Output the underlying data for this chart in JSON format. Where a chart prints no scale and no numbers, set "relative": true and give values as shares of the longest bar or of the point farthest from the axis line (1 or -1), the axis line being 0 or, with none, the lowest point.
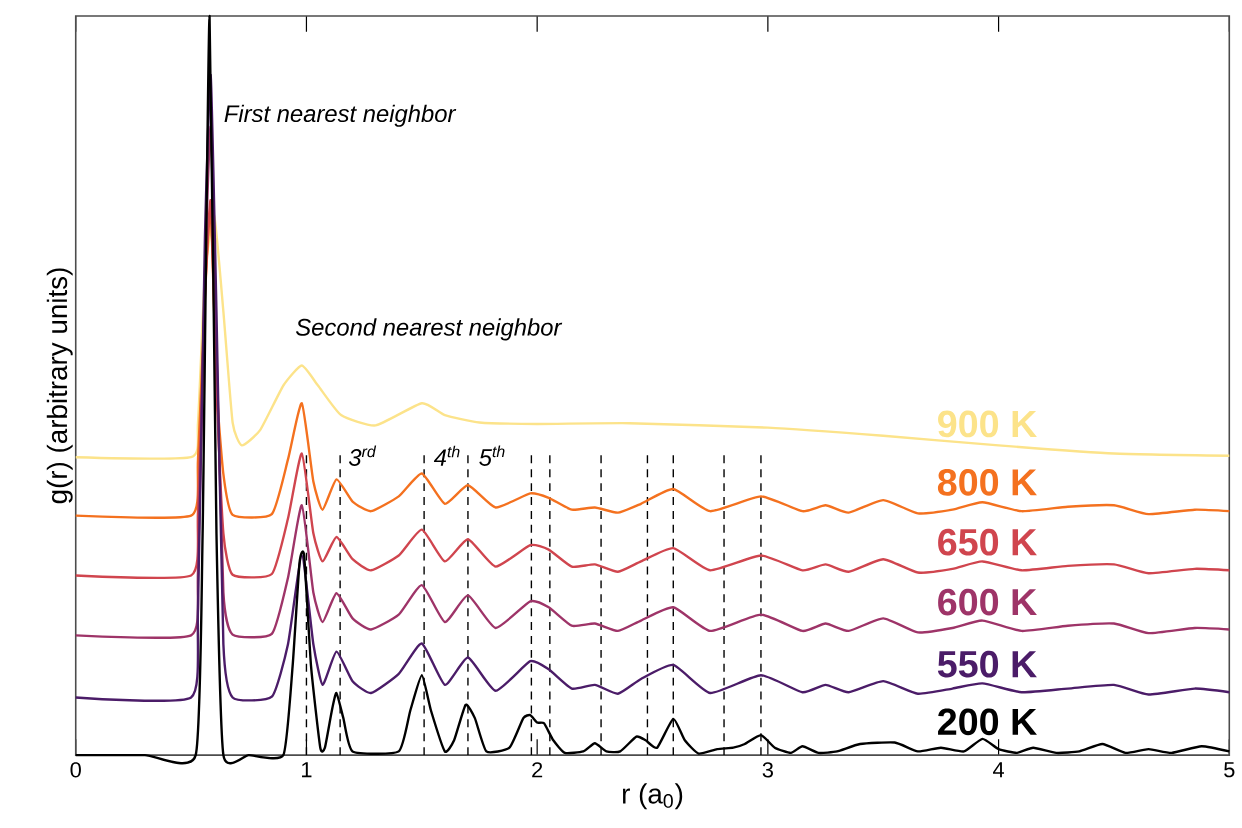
{
  "chart_data": {
    "type": "line",
    "relative": true,
    "xlabel": "r (a$_{0}$)",
    "ylabel": "g(r) (arbitrary units)",
    "xlim": [
      0,
      5
    ],
    "xticks": [
      0,
      1,
      2,
      3,
      4,
      5
    ],
    "tick_labels": "x",
    "grid": false,
    "line_style": "solid",
    "annotations": [
      "First nearest neighbor",
      "Second nearest neighbor",
      "3$^{rd}$",
      "4$^{th}$",
      "5$^{th}$"
    ],
    "ref_lines": [
      {
        "axis": "x",
        "value": 1.0,
        "color": "#000000",
        "line_style": "dashed"
      },
      {
        "axis": "x",
        "value": 1.146,
        "color": "#000000",
        "line_style": "dashed"
      },
      {
        "axis": "x",
        "value": 1.51,
        "color": "#000000",
        "line_style": "dashed"
      },
      {
        "axis": "x",
        "value": 1.7,
        "color": "#000000",
        "line_style": "dashed"
      },
      {
        "axis": "x",
        "value": 1.975,
        "color": "#000000",
        "line_style": "dashed"
      },
      {
        "axis": "x",
        "value": 2.055,
        "color": "#000000",
        "line_style": "dashed"
      },
      {
        "axis": "x",
        "value": 2.277,
        "color": "#000000",
        "line_style": "dashed"
      },
      {
        "axis": "x",
        "value": 2.478,
        "color": "#000000",
        "line_style": "dashed"
      },
      {
        "axis": "x",
        "value": 2.59,
        "color": "#000000",
        "line_style": "dashed"
      },
      {
        "axis": "x",
        "value": 2.81,
        "color": "#000000",
        "line_style": "dashed"
      },
      {
        "axis": "x",
        "value": 2.97,
        "color": "#000000",
        "line_style": "dashed"
      }
    ],
    "series": [
      {
        "name": "900 K",
        "color": "#fce38a",
        "x": [
          0,
          0.5,
          0.53,
          0.56,
          0.6,
          0.64,
          0.68,
          0.72,
          0.8,
          0.9,
          0.98,
          1.05,
          1.15,
          1.3,
          1.5,
          1.6,
          1.75,
          2.0,
          2.4,
          3.0,
          3.5,
          4.0,
          4.5,
          5.0
        ],
        "values": [
          0.403,
          0.403,
          0.45,
          0.65,
          0.73,
          0.6,
          0.45,
          0.419,
          0.44,
          0.5,
          0.527,
          0.5,
          0.46,
          0.446,
          0.476,
          0.46,
          0.45,
          0.448,
          0.449,
          0.443,
          0.432,
          0.419,
          0.408,
          0.405
        ]
      },
      {
        "name": "800 K",
        "color": "#f4711f",
        "x": [
          0,
          0.5,
          0.53,
          0.56,
          0.585,
          0.61,
          0.64,
          0.68,
          0.85,
          0.92,
          0.98,
          1.03,
          1.07,
          1.13,
          1.2,
          1.28,
          1.4,
          1.5,
          1.6,
          1.7,
          1.82,
          1.97,
          2.05,
          2.15,
          2.25,
          2.35,
          2.45,
          2.59,
          2.75,
          2.97,
          3.15,
          3.25,
          3.35,
          3.5,
          3.65,
          3.8,
          3.93,
          4.1,
          4.3,
          4.5,
          4.65,
          4.85,
          5.0
        ],
        "values": [
          0.324,
          0.324,
          0.4,
          0.62,
          0.74,
          0.5,
          0.38,
          0.325,
          0.326,
          0.4,
          0.476,
          0.37,
          0.332,
          0.373,
          0.343,
          0.33,
          0.35,
          0.381,
          0.34,
          0.365,
          0.335,
          0.354,
          0.348,
          0.332,
          0.335,
          0.328,
          0.34,
          0.36,
          0.33,
          0.35,
          0.33,
          0.338,
          0.328,
          0.345,
          0.327,
          0.332,
          0.342,
          0.33,
          0.336,
          0.338,
          0.326,
          0.332,
          0.33
        ]
      },
      {
        "name": "650 K",
        "color": "#d0454e",
        "x": [
          0,
          0.5,
          0.53,
          0.56,
          0.585,
          0.61,
          0.64,
          0.68,
          0.85,
          0.92,
          0.98,
          1.03,
          1.07,
          1.13,
          1.2,
          1.28,
          1.4,
          1.5,
          1.6,
          1.7,
          1.82,
          1.97,
          2.05,
          2.15,
          2.25,
          2.35,
          2.45,
          2.59,
          2.75,
          2.97,
          3.15,
          3.25,
          3.35,
          3.5,
          3.65,
          3.8,
          3.93,
          4.1,
          4.3,
          4.5,
          4.65,
          4.85,
          5.0
        ],
        "values": [
          0.243,
          0.243,
          0.33,
          0.62,
          0.75,
          0.5,
          0.3,
          0.244,
          0.245,
          0.32,
          0.408,
          0.3,
          0.262,
          0.295,
          0.265,
          0.25,
          0.27,
          0.305,
          0.262,
          0.292,
          0.255,
          0.284,
          0.278,
          0.255,
          0.258,
          0.248,
          0.262,
          0.28,
          0.25,
          0.27,
          0.25,
          0.258,
          0.248,
          0.265,
          0.247,
          0.252,
          0.262,
          0.25,
          0.256,
          0.258,
          0.246,
          0.252,
          0.25
        ]
      },
      {
        "name": "600 K",
        "color": "#9e3468",
        "x": [
          0,
          0.5,
          0.53,
          0.56,
          0.585,
          0.61,
          0.64,
          0.68,
          0.85,
          0.92,
          0.98,
          1.03,
          1.07,
          1.13,
          1.2,
          1.28,
          1.4,
          1.5,
          1.6,
          1.7,
          1.82,
          1.97,
          2.05,
          2.15,
          2.25,
          2.35,
          2.45,
          2.59,
          2.75,
          2.97,
          3.15,
          3.25,
          3.35,
          3.5,
          3.65,
          3.8,
          3.93,
          4.1,
          4.3,
          4.5,
          4.65,
          4.85,
          5.0
        ],
        "values": [
          0.162,
          0.162,
          0.25,
          0.65,
          0.85,
          0.55,
          0.22,
          0.163,
          0.164,
          0.24,
          0.338,
          0.22,
          0.18,
          0.219,
          0.185,
          0.17,
          0.19,
          0.23,
          0.18,
          0.216,
          0.172,
          0.208,
          0.2,
          0.175,
          0.178,
          0.168,
          0.182,
          0.2,
          0.168,
          0.19,
          0.168,
          0.178,
          0.168,
          0.185,
          0.166,
          0.172,
          0.182,
          0.168,
          0.175,
          0.178,
          0.165,
          0.172,
          0.17
        ]
      },
      {
        "name": "550 K",
        "color": "#4b1c68",
        "x": [
          0,
          0.5,
          0.53,
          0.56,
          0.585,
          0.61,
          0.64,
          0.68,
          0.85,
          0.92,
          0.98,
          1.03,
          1.07,
          1.13,
          1.2,
          1.28,
          1.4,
          1.5,
          1.6,
          1.7,
          1.82,
          1.97,
          2.05,
          2.15,
          2.25,
          2.35,
          2.45,
          2.59,
          2.75,
          2.97,
          3.15,
          3.25,
          3.35,
          3.5,
          3.65,
          3.8,
          3.93,
          4.1,
          4.3,
          4.5,
          4.65,
          4.85,
          5.0
        ],
        "values": [
          0.078,
          0.078,
          0.2,
          0.7,
          0.92,
          0.6,
          0.15,
          0.078,
          0.079,
          0.15,
          0.27,
          0.15,
          0.095,
          0.14,
          0.1,
          0.084,
          0.11,
          0.151,
          0.095,
          0.132,
          0.087,
          0.127,
          0.116,
          0.09,
          0.095,
          0.083,
          0.103,
          0.122,
          0.084,
          0.108,
          0.085,
          0.095,
          0.085,
          0.1,
          0.083,
          0.09,
          0.097,
          0.085,
          0.09,
          0.095,
          0.082,
          0.09,
          0.085
        ]
      },
      {
        "name": "200 K",
        "color": "#000000",
        "x": [
          0,
          0.3,
          0.52,
          0.55,
          0.58,
          0.61,
          0.64,
          0.75,
          0.9,
          0.94,
          0.97,
          0.99,
          1.02,
          1.06,
          1.08,
          1.11,
          1.13,
          1.16,
          1.2,
          1.4,
          1.45,
          1.5,
          1.54,
          1.6,
          1.64,
          1.69,
          1.73,
          1.78,
          1.88,
          1.94,
          1.97,
          2.0,
          2.03,
          2.07,
          2.12,
          2.2,
          2.25,
          2.3,
          2.36,
          2.43,
          2.47,
          2.52,
          2.59,
          2.64,
          2.7,
          2.78,
          2.85,
          2.9,
          2.97,
          3.03,
          3.1,
          3.15,
          3.22,
          3.3,
          3.4,
          3.55,
          3.65,
          3.75,
          3.85,
          3.93,
          4.0,
          4.08,
          4.15,
          4.25,
          4.35,
          4.45,
          4.55,
          4.65,
          4.75,
          4.88,
          5.0
        ],
        "values": [
          0,
          0,
          0,
          0.3,
          1.0,
          0.3,
          0,
          0,
          0,
          0.12,
          0.26,
          0.27,
          0.12,
          0.01,
          0.01,
          0.06,
          0.084,
          0.05,
          0.005,
          0.005,
          0.06,
          0.108,
          0.06,
          0.005,
          0.02,
          0.068,
          0.05,
          0.005,
          0.01,
          0.05,
          0.054,
          0.044,
          0.043,
          0.02,
          0.003,
          0.005,
          0.016,
          0.005,
          0.005,
          0.025,
          0.02,
          0.01,
          0.049,
          0.02,
          0.002,
          0.008,
          0.01,
          0.015,
          0.027,
          0.01,
          0.003,
          0.012,
          0.003,
          0.005,
          0.015,
          0.017,
          0.005,
          0.01,
          0.005,
          0.022,
          0.008,
          0.003,
          0.01,
          0.003,
          0.005,
          0.015,
          0.003,
          0.008,
          0.003,
          0.012,
          0.005
        ]
      }
    ]
  }
}
